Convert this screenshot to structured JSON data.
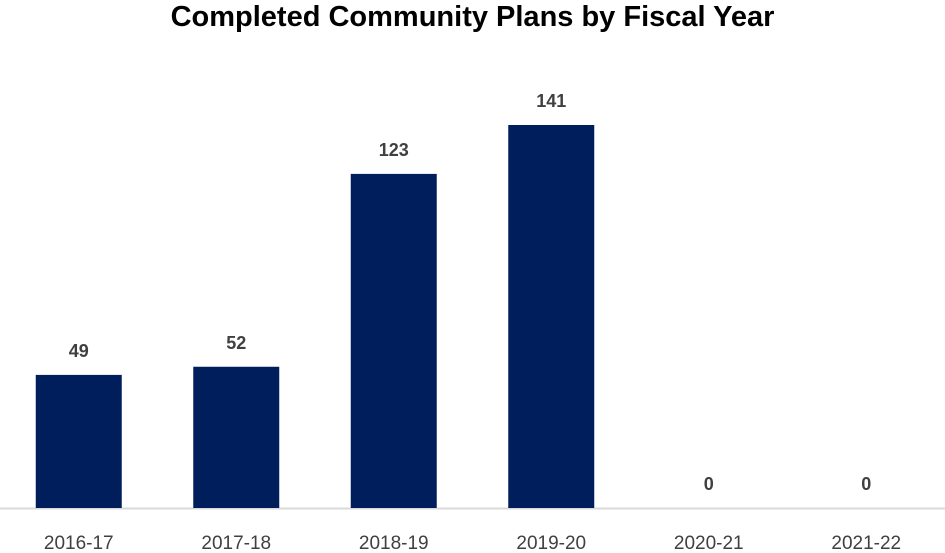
{
  "chart_data": {
    "type": "bar",
    "title": "Completed Community Plans by Fiscal Year",
    "categories": [
      "2016-17",
      "2017-18",
      "2018-19",
      "2019-20",
      "2020-21",
      "2021-22"
    ],
    "values": [
      49,
      52,
      123,
      141,
      0,
      0
    ],
    "data_labels": [
      "49",
      "52",
      "123",
      "141",
      "0",
      "0"
    ],
    "xlabel": "",
    "ylabel": "",
    "ylim": [
      0,
      141
    ],
    "grid": false,
    "legend": "none",
    "colors": {
      "bar": "#001e5b",
      "axis": "#d9d9d9",
      "label": "#404040"
    }
  }
}
